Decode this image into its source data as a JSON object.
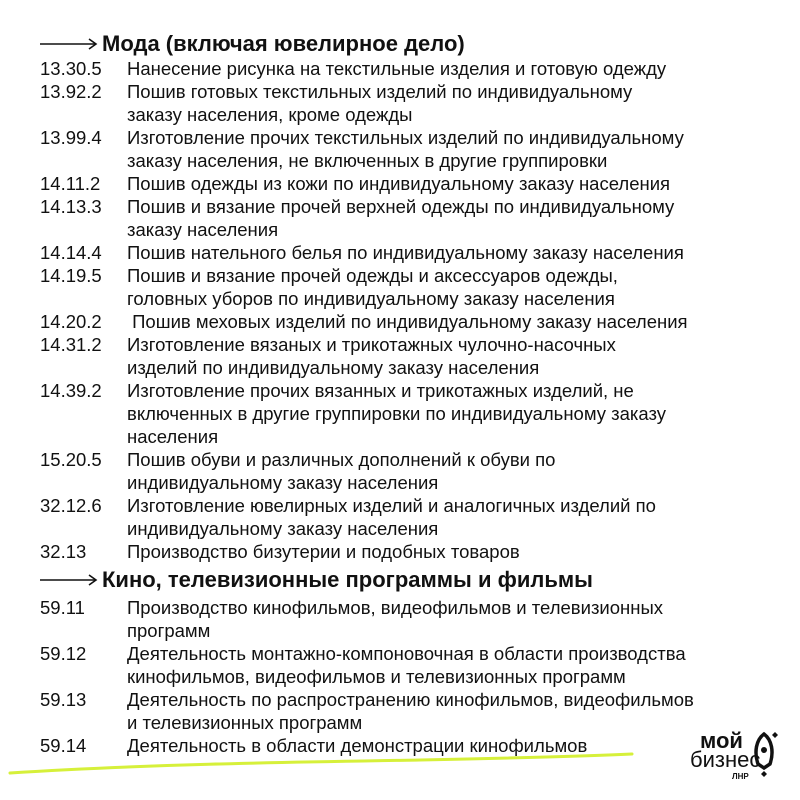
{
  "sections": [
    {
      "title": "Мода (включая ювелирное дело)",
      "items": [
        {
          "code": "13.30.5",
          "desc": "Нанесение рисунка на текстильные изделия и готовую одежду"
        },
        {
          "code": "13.92.2",
          "desc": "Пошив готовых текстильных изделий по индивидуальному\nзаказу населения, кроме одежды"
        },
        {
          "code": "13.99.4",
          "desc": "Изготовление прочих текстильных изделий по индивидуальному\nзаказу населения, не включенных в другие группировки"
        },
        {
          "code": "14.11.2",
          "desc": "Пошив одежды из кожи по индивидуальному заказу населения"
        },
        {
          "code": "14.13.3",
          "desc": "Пошив и вязание прочей верхней одежды по индивидуальному\nзаказу населения"
        },
        {
          "code": "14.14.4",
          "desc": "Пошив нательного белья по индивидуальному заказу населения"
        },
        {
          "code": "14.19.5",
          "desc": "Пошив и вязание прочей одежды и аксессуаров одежды,\nголовных уборов по индивидуальному заказу населения"
        },
        {
          "code": "14.20.2",
          "desc": " Пошив меховых изделий по индивидуальному заказу населения"
        },
        {
          "code": "14.31.2",
          "desc": "Изготовление вязаных и трикотажных чулочно-насочных\nизделий по индивидуальному заказу населения"
        },
        {
          "code": "14.39.2",
          "desc": "Изготовление прочих вязанных и трикотажных изделий, не\nвключенных в другие группировки по индивидуальному заказу\nнаселения"
        },
        {
          "code": "15.20.5",
          "desc": "Пошив обуви и различных дополнений к обуви по\nиндивидуальному заказу населения"
        },
        {
          "code": "32.12.6",
          "desc": "Изготовление ювелирных изделий и аналогичных изделий по\nиндивидуальному заказу населения"
        },
        {
          "code": "32.13",
          "desc": "Производство бизутерии и подобных товаров"
        }
      ]
    },
    {
      "title": "Кино, телевизионные программы и фильмы",
      "items": [
        {
          "code": "59.11",
          "desc": "Производство кинофильмов, видеофильмов и телевизионных\nпрограмм"
        },
        {
          "code": "59.12",
          "desc": "Деятельность монтажно-компоновочная в области производства\nкинофильмов, видеофильмов и телевизионных программ"
        },
        {
          "code": "59.13",
          "desc": "Деятельность по распространению кинофильмов, видеофильмов\nи телевизионных программ"
        },
        {
          "code": "59.14",
          "desc": "Деятельность в области демонстрации кинофильмов"
        }
      ]
    }
  ],
  "logo": {
    "line1": "мой",
    "line2": "бизнес",
    "line3": "ЛНР"
  },
  "colors": {
    "accent": "#d6f03a",
    "text": "#111111"
  }
}
